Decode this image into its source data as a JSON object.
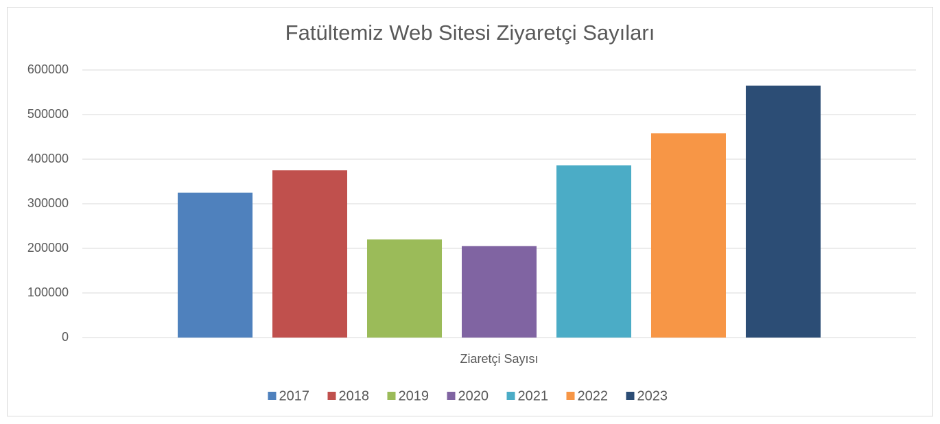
{
  "chart_data": {
    "type": "bar",
    "title": "Fatültemiz Web Sitesi Ziyaretçi Sayıları",
    "categories": [
      "Ziaretçi Sayısı"
    ],
    "series": [
      {
        "name": "2017",
        "color": "#4f81bd",
        "values": [
          325000
        ]
      },
      {
        "name": "2018",
        "color": "#c0504d",
        "values": [
          375000
        ]
      },
      {
        "name": "2019",
        "color": "#9bbb59",
        "values": [
          220000
        ]
      },
      {
        "name": "2020",
        "color": "#8064a2",
        "values": [
          205000
        ]
      },
      {
        "name": "2021",
        "color": "#4bacc6",
        "values": [
          386000
        ]
      },
      {
        "name": "2022",
        "color": "#f79646",
        "values": [
          458000
        ]
      },
      {
        "name": "2023",
        "color": "#2c4d75",
        "values": [
          565000
        ]
      }
    ],
    "ylim": [
      0,
      600000
    ],
    "yticks": [
      0,
      100000,
      200000,
      300000,
      400000,
      500000,
      600000
    ],
    "grid": true,
    "legend": "bottom"
  }
}
